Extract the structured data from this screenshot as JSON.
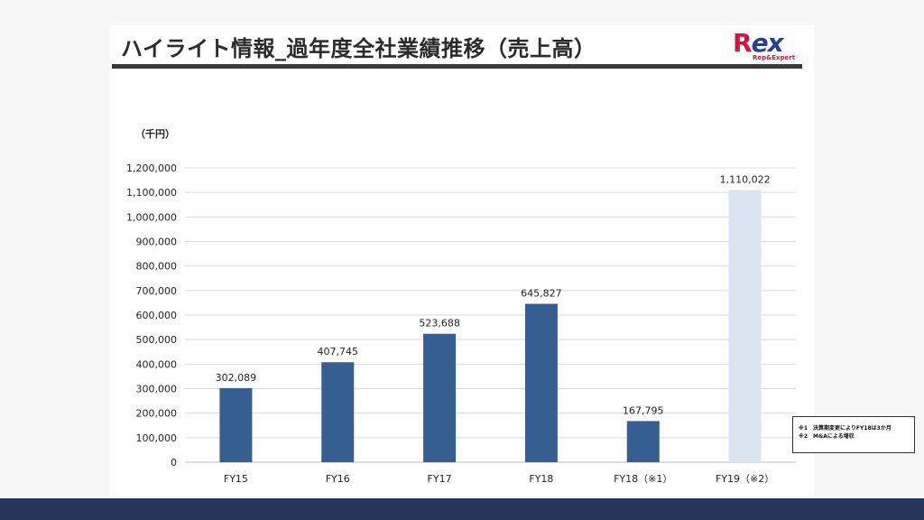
{
  "title": "ハイライト情報_過年度全社業績推移（売上高）",
  "logo": {
    "main_r": "R",
    "main_ex": "ex",
    "sub": "Rep&Expert"
  },
  "unit_label": "（千円）",
  "notes": [
    "※1　決算期変更によりFY18は3か月",
    "※2　M&Aによる増収"
  ],
  "colors": {
    "bar": "#365f91",
    "bar_highlight": "#dbe5f1",
    "grid": "#d9d9d9",
    "bottom_bar": "#27375c"
  },
  "chart_data": {
    "type": "bar",
    "categories": [
      "FY15",
      "FY16",
      "FY17",
      "FY18",
      "FY18（※1）",
      "FY19（※2）"
    ],
    "values": [
      302089,
      407745,
      523688,
      645827,
      167795,
      1110022
    ],
    "data_labels": [
      "302,089",
      "407,745",
      "523,688",
      "645,827",
      "167,795",
      "1,110,022"
    ],
    "highlight": [
      false,
      false,
      false,
      false,
      false,
      true
    ],
    "ylim": [
      0,
      1200000
    ],
    "yticks": [
      0,
      100000,
      200000,
      300000,
      400000,
      500000,
      600000,
      700000,
      800000,
      900000,
      1000000,
      1100000,
      1200000
    ],
    "ytick_labels": [
      "0",
      "100,000",
      "200,000",
      "300,000",
      "400,000",
      "500,000",
      "600,000",
      "700,000",
      "800,000",
      "900,000",
      "1,000,000",
      "1,100,000",
      "1,200,000"
    ],
    "ylabel": "（千円）",
    "xlabel": "",
    "grid": true
  }
}
